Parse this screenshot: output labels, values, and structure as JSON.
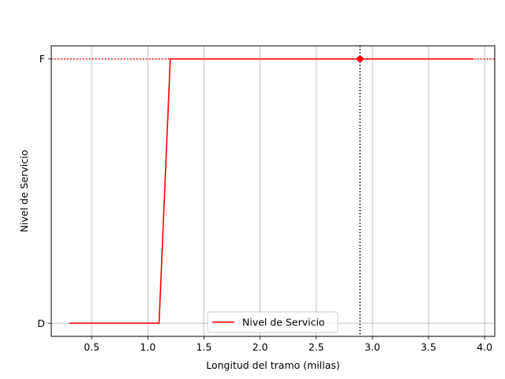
{
  "chart_data": {
    "type": "line",
    "title": "",
    "xlabel": "Longitud del tramo (millas)",
    "ylabel": "Nivel de Servicio",
    "xlim": [
      0.14,
      4.09
    ],
    "ylim": [
      -0.05,
      1.05
    ],
    "x_ticks": [
      0.5,
      1.0,
      1.5,
      2.0,
      2.5,
      3.0,
      3.5,
      4.0
    ],
    "x_tick_labels": [
      "0.5",
      "1.0",
      "1.5",
      "2.0",
      "2.5",
      "3.0",
      "3.5",
      "4.0"
    ],
    "y_ticks": [
      0,
      1
    ],
    "y_tick_labels": [
      "D",
      "F"
    ],
    "grid": true,
    "legend_position": "bottom-center",
    "series": [
      {
        "name": "Nivel de Servicio",
        "color": "#ff0000",
        "x": [
          0.3,
          1.1,
          1.2,
          3.9
        ],
        "y": [
          0,
          0,
          1,
          1
        ]
      }
    ],
    "marker": {
      "x": 2.89,
      "y": 1,
      "color": "#ff0000"
    },
    "vline": {
      "x": 2.89,
      "color": "#000000",
      "style": "dotted"
    },
    "hline": {
      "y": 1,
      "color": "#ff0000",
      "style": "dotted"
    }
  }
}
